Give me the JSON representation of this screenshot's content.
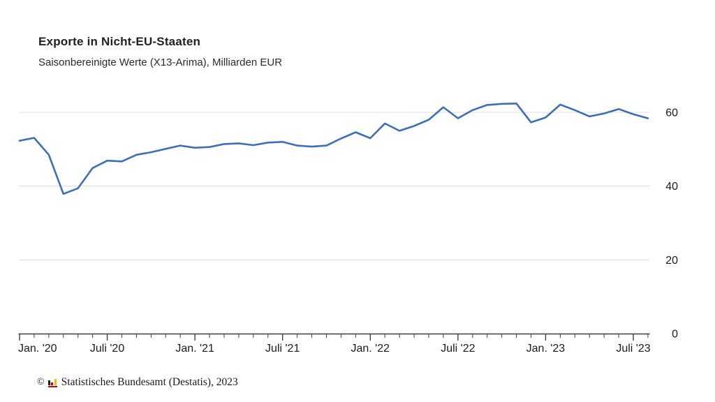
{
  "header": {
    "title": "Exporte in Nicht-EU-Staaten",
    "subtitle": "Saisonbereinigte Werte (X13-Arima), Milliarden EUR"
  },
  "footer": {
    "copyright_symbol": "©",
    "source": "Statistisches Bundesamt (Destatis), 2023"
  },
  "colors": {
    "line": "#3C6FB6",
    "gridline": "#dcdcdc",
    "axis": "#3f3f3f",
    "text": "#1a1a1a"
  },
  "chart_data": {
    "type": "line",
    "title": "Exporte in Nicht-EU-Staaten",
    "subtitle": "Saisonbereinigte Werte (X13-Arima), Milliarden EUR",
    "unit": "Milliarden EUR",
    "legend": "none",
    "grid": "horizontal",
    "ylim": [
      0,
      65
    ],
    "y_ticks": [
      60,
      40,
      20,
      0
    ],
    "y_tick_labels": [
      "60",
      "40",
      "20",
      "0"
    ],
    "x_tick_labels": [
      "Jan. '20",
      "Juli '20",
      "Jan. '21",
      "Juli '21",
      "Jan. '22",
      "Juli '22",
      "Jan. '23",
      "Juli '23"
    ],
    "x_minor_ticks": "monthly",
    "x": [
      "Jan '20",
      "Feb '20",
      "Mär '20",
      "Apr '20",
      "Mai '20",
      "Juni '20",
      "Juli '20",
      "Aug '20",
      "Sep '20",
      "Okt '20",
      "Nov '20",
      "Dez '20",
      "Jan '21",
      "Feb '21",
      "Mär '21",
      "Apr '21",
      "Mai '21",
      "Juni '21",
      "Juli '21",
      "Aug '21",
      "Sep '21",
      "Okt '21",
      "Nov '21",
      "Dez '21",
      "Jan '22",
      "Feb '22",
      "Mär '22",
      "Apr '22",
      "Mai '22",
      "Juni '22",
      "Juli '22",
      "Aug '22",
      "Sep '22",
      "Okt '22",
      "Nov '22",
      "Dez '22",
      "Jan '23",
      "Feb '23",
      "Mär '23",
      "Apr '23",
      "Mai '23",
      "Juni '23",
      "Juli '23",
      "Aug '23"
    ],
    "series": [
      {
        "name": "Exporte in Nicht-EU-Staaten",
        "values": [
          52.3,
          53.1,
          48.5,
          37.9,
          39.4,
          44.9,
          46.9,
          46.7,
          48.5,
          49.2,
          50.1,
          51.0,
          50.4,
          50.6,
          51.4,
          51.6,
          51.1,
          51.8,
          52.0,
          51.0,
          50.7,
          51.0,
          52.9,
          54.6,
          53.0,
          57.0,
          55.0,
          56.3,
          58.0,
          61.4,
          58.4,
          60.6,
          62.0,
          62.3,
          62.4,
          57.3,
          58.6,
          62.1,
          60.6,
          58.9,
          59.7,
          60.9,
          59.5,
          58.4
        ]
      }
    ]
  }
}
